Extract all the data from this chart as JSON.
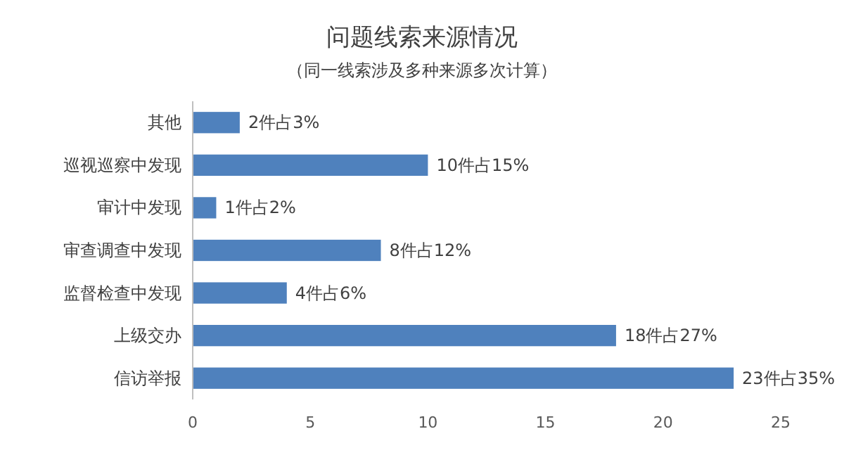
{
  "chart_data": {
    "type": "bar",
    "orientation": "horizontal",
    "title": "问题线索来源情况",
    "subtitle": "（同一线索涉及多种来源多次计算）",
    "categories": [
      "其他",
      "巡视巡察中发现",
      "审计中发现",
      "审查调查中发现",
      "监督检查中发现",
      "上级交办",
      "信访举报"
    ],
    "values": [
      2,
      10,
      1,
      8,
      4,
      18,
      23
    ],
    "value_labels": [
      "2件占3%",
      "10件占15%",
      "1件占2%",
      "8件占12%",
      "4件占6%",
      "18件占27%",
      "23件占35%"
    ],
    "color": "#4f81bd",
    "xlim": [
      0,
      25
    ],
    "xticks": [
      0,
      5,
      10,
      15,
      20,
      25
    ],
    "grid": false
  }
}
